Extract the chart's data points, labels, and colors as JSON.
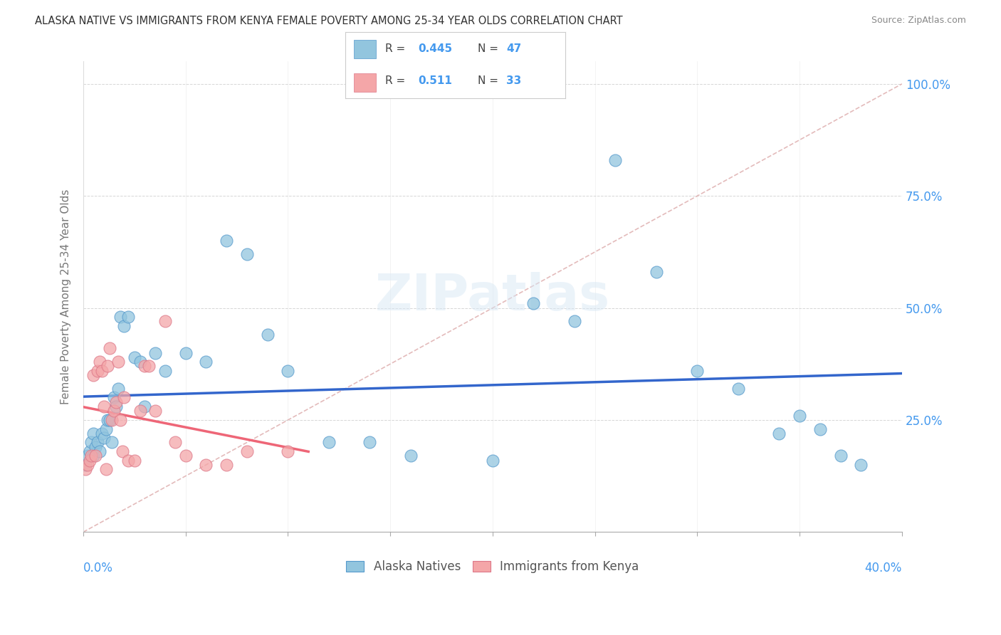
{
  "title": "ALASKA NATIVE VS IMMIGRANTS FROM KENYA FEMALE POVERTY AMONG 25-34 YEAR OLDS CORRELATION CHART",
  "source": "Source: ZipAtlas.com",
  "ylabel": "Female Poverty Among 25-34 Year Olds",
  "ytick_labels": [
    "25.0%",
    "50.0%",
    "75.0%",
    "100.0%"
  ],
  "ytick_values": [
    0.25,
    0.5,
    0.75,
    1.0
  ],
  "color_blue": "#92C5DE",
  "color_pink": "#F4A6A8",
  "color_blue_edge": "#5599CC",
  "color_pink_edge": "#DD7788",
  "color_blue_text": "#4499EE",
  "color_pink_text": "#FF8899",
  "line_blue": "#3366CC",
  "line_pink": "#EE6677",
  "line_diag": "#DDAAAA",
  "background": "#FFFFFF",
  "legend_r1": "0.445",
  "legend_n1": "47",
  "legend_r2": "0.511",
  "legend_n2": "33",
  "alaska_x": [
    0.001,
    0.002,
    0.003,
    0.004,
    0.005,
    0.005,
    0.006,
    0.007,
    0.008,
    0.009,
    0.01,
    0.011,
    0.012,
    0.013,
    0.014,
    0.015,
    0.016,
    0.017,
    0.018,
    0.02,
    0.022,
    0.025,
    0.028,
    0.03,
    0.035,
    0.04,
    0.05,
    0.06,
    0.07,
    0.08,
    0.09,
    0.1,
    0.12,
    0.14,
    0.16,
    0.2,
    0.22,
    0.24,
    0.26,
    0.28,
    0.3,
    0.32,
    0.34,
    0.35,
    0.36,
    0.37,
    0.38
  ],
  "alaska_y": [
    0.15,
    0.17,
    0.18,
    0.2,
    0.17,
    0.22,
    0.19,
    0.2,
    0.18,
    0.22,
    0.21,
    0.23,
    0.25,
    0.25,
    0.2,
    0.3,
    0.28,
    0.32,
    0.48,
    0.46,
    0.48,
    0.39,
    0.38,
    0.28,
    0.4,
    0.36,
    0.4,
    0.38,
    0.65,
    0.62,
    0.44,
    0.36,
    0.2,
    0.2,
    0.17,
    0.16,
    0.51,
    0.47,
    0.83,
    0.58,
    0.36,
    0.32,
    0.22,
    0.26,
    0.23,
    0.17,
    0.15
  ],
  "kenya_x": [
    0.001,
    0.002,
    0.003,
    0.004,
    0.005,
    0.006,
    0.007,
    0.008,
    0.009,
    0.01,
    0.011,
    0.012,
    0.013,
    0.014,
    0.015,
    0.016,
    0.017,
    0.018,
    0.019,
    0.02,
    0.022,
    0.025,
    0.028,
    0.03,
    0.032,
    0.035,
    0.04,
    0.045,
    0.05,
    0.06,
    0.07,
    0.08,
    0.1
  ],
  "kenya_y": [
    0.14,
    0.15,
    0.16,
    0.17,
    0.35,
    0.17,
    0.36,
    0.38,
    0.36,
    0.28,
    0.14,
    0.37,
    0.41,
    0.25,
    0.27,
    0.29,
    0.38,
    0.25,
    0.18,
    0.3,
    0.16,
    0.16,
    0.27,
    0.37,
    0.37,
    0.27,
    0.47,
    0.2,
    0.17,
    0.15,
    0.15,
    0.18,
    0.18
  ]
}
